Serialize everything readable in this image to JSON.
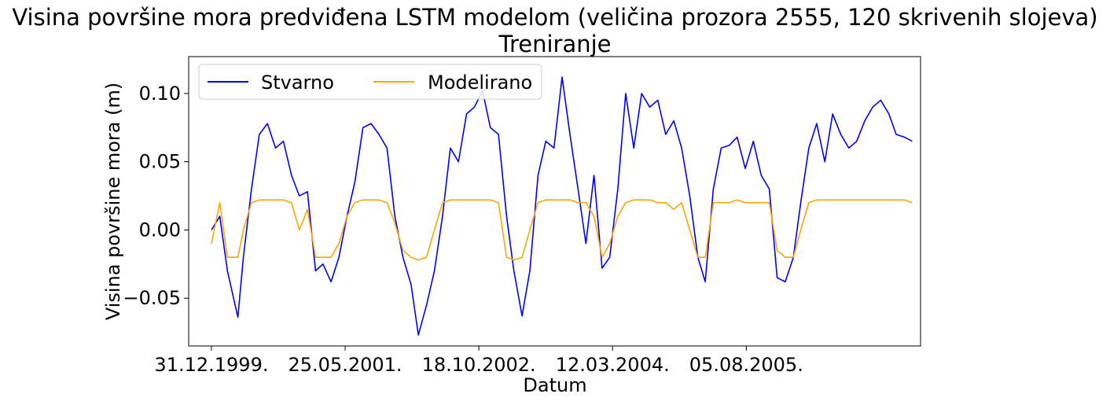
{
  "chart_data": {
    "type": "line",
    "title": "Visina površine mora predviđena LSTM modelom (veličina prozora 2555, 120 skrivenih slojeva)",
    "subtitle": "Treniranje",
    "xlabel": "Datum",
    "ylabel": "Visina površine mora (m)",
    "ylim": [
      -0.085,
      0.127
    ],
    "yticks": [
      -0.05,
      0.0,
      0.05,
      0.1
    ],
    "ytick_labels": [
      "−0.05",
      "0.00",
      "0.05",
      "0.10"
    ],
    "xlim": [
      "1999-10-05",
      "2007-06-02"
    ],
    "xticks": [
      "1999-12-31",
      "2001-05-25",
      "2002-10-18",
      "2004-03-12",
      "2005-08-05"
    ],
    "xtick_labels": [
      "31.12.1999.",
      "25.05.2001.",
      "18.10.2002.",
      "12.03.2004.",
      "05.08.2005."
    ],
    "grid": false,
    "legend_position": "top-left",
    "series": [
      {
        "name": "Stvarno",
        "color": "#0000ff",
        "x": [
          "1999-12-31",
          "2000-02-01",
          "2000-03-01",
          "2000-04-10",
          "2000-05-01",
          "2000-06-01",
          "2000-07-01",
          "2000-08-01",
          "2000-09-01",
          "2000-10-01",
          "2000-11-01",
          "2000-12-01",
          "2001-01-01",
          "2001-02-01",
          "2001-03-01",
          "2001-04-01",
          "2001-05-01",
          "2001-06-01",
          "2001-07-01",
          "2001-08-01",
          "2001-09-01",
          "2001-10-01",
          "2001-11-01",
          "2001-12-01",
          "2002-01-01",
          "2002-02-01",
          "2002-03-01",
          "2002-04-01",
          "2002-05-01",
          "2002-06-01",
          "2002-07-01",
          "2002-08-01",
          "2002-09-01",
          "2002-10-01",
          "2002-11-01",
          "2002-12-01",
          "2003-01-01",
          "2003-02-01",
          "2003-03-01",
          "2003-04-01",
          "2003-05-01",
          "2003-06-01",
          "2003-07-01",
          "2003-08-01",
          "2003-09-01",
          "2003-10-01",
          "2003-11-01",
          "2003-12-01",
          "2004-01-01",
          "2004-02-01",
          "2004-03-01",
          "2004-04-01",
          "2004-05-01",
          "2004-06-01",
          "2004-07-01",
          "2004-08-01",
          "2004-09-01",
          "2004-10-01",
          "2004-11-01",
          "2004-12-01",
          "2005-01-01",
          "2005-02-01",
          "2005-03-01",
          "2005-04-01",
          "2005-05-01",
          "2005-06-01",
          "2005-07-01",
          "2005-08-01",
          "2005-09-01",
          "2005-10-01",
          "2005-11-01",
          "2005-12-01",
          "2006-01-01",
          "2006-02-01",
          "2006-03-01",
          "2006-04-01",
          "2006-05-01",
          "2006-06-01",
          "2006-07-01",
          "2006-08-01",
          "2006-09-01",
          "2006-10-01",
          "2006-11-01",
          "2006-12-01",
          "2007-01-01",
          "2007-02-01",
          "2007-03-01",
          "2007-04-01",
          "2007-05-01"
        ],
        "y": [
          0.0,
          0.01,
          -0.03,
          -0.064,
          -0.02,
          0.03,
          0.07,
          0.078,
          0.06,
          0.065,
          0.04,
          0.025,
          0.028,
          -0.03,
          -0.025,
          -0.038,
          -0.02,
          0.01,
          0.035,
          0.075,
          0.078,
          0.07,
          0.06,
          0.01,
          -0.02,
          -0.04,
          -0.077,
          -0.055,
          -0.03,
          0.01,
          0.06,
          0.05,
          0.085,
          0.09,
          0.102,
          0.075,
          0.07,
          0.01,
          -0.03,
          -0.063,
          -0.03,
          0.04,
          0.065,
          0.06,
          0.112,
          0.07,
          0.03,
          -0.01,
          0.04,
          -0.028,
          -0.02,
          0.03,
          0.1,
          0.06,
          0.1,
          0.09,
          0.095,
          0.07,
          0.08,
          0.06,
          0.025,
          -0.02,
          -0.038,
          0.03,
          0.06,
          0.062,
          0.068,
          0.045,
          0.065,
          0.04,
          0.03,
          -0.035,
          -0.038,
          -0.02,
          0.02,
          0.06,
          0.078,
          0.05,
          0.085,
          0.07,
          0.06,
          0.065,
          0.08,
          0.09,
          0.095,
          0.085,
          0.07,
          0.068,
          0.065
        ]
      },
      {
        "name": "Modelirano",
        "color": "#ffa500",
        "x": [
          "1999-12-31",
          "2000-02-01",
          "2000-03-01",
          "2000-04-10",
          "2000-05-01",
          "2000-06-01",
          "2000-07-01",
          "2000-08-01",
          "2000-09-01",
          "2000-10-01",
          "2000-11-01",
          "2000-12-01",
          "2001-01-01",
          "2001-02-01",
          "2001-03-01",
          "2001-04-01",
          "2001-05-01",
          "2001-06-01",
          "2001-07-01",
          "2001-08-01",
          "2001-09-01",
          "2001-10-01",
          "2001-11-01",
          "2001-12-01",
          "2002-01-01",
          "2002-02-01",
          "2002-03-01",
          "2002-04-01",
          "2002-05-01",
          "2002-06-01",
          "2002-07-01",
          "2002-08-01",
          "2002-09-01",
          "2002-10-01",
          "2002-11-01",
          "2002-12-01",
          "2003-01-01",
          "2003-02-01",
          "2003-03-01",
          "2003-04-01",
          "2003-05-01",
          "2003-06-01",
          "2003-07-01",
          "2003-08-01",
          "2003-09-01",
          "2003-10-01",
          "2003-11-01",
          "2003-12-01",
          "2004-01-01",
          "2004-02-01",
          "2004-03-01",
          "2004-04-01",
          "2004-05-01",
          "2004-06-01",
          "2004-07-01",
          "2004-08-01",
          "2004-09-01",
          "2004-10-01",
          "2004-11-01",
          "2004-12-01",
          "2005-01-01",
          "2005-02-01",
          "2005-03-01",
          "2005-04-01",
          "2005-05-01",
          "2005-06-01",
          "2005-07-01",
          "2005-08-01",
          "2005-09-01",
          "2005-10-01",
          "2005-11-01",
          "2005-12-01",
          "2006-01-01",
          "2006-02-01",
          "2006-03-01",
          "2006-04-01",
          "2006-05-01",
          "2006-06-01",
          "2006-07-01",
          "2006-08-01",
          "2006-09-01",
          "2006-10-01",
          "2006-11-01",
          "2006-12-01",
          "2007-01-01",
          "2007-02-01",
          "2007-03-01",
          "2007-04-01",
          "2007-05-01"
        ],
        "y": [
          -0.01,
          0.02,
          -0.02,
          -0.02,
          0.0,
          0.02,
          0.022,
          0.022,
          0.022,
          0.022,
          0.02,
          0.0,
          0.015,
          -0.02,
          -0.02,
          -0.02,
          -0.01,
          0.01,
          0.02,
          0.022,
          0.022,
          0.022,
          0.02,
          0.005,
          -0.015,
          -0.02,
          -0.022,
          -0.02,
          0.0,
          0.02,
          0.022,
          0.022,
          0.022,
          0.022,
          0.022,
          0.022,
          0.02,
          -0.02,
          -0.022,
          -0.02,
          0.0,
          0.02,
          0.022,
          0.022,
          0.022,
          0.022,
          0.02,
          0.02,
          0.01,
          -0.02,
          -0.01,
          0.01,
          0.02,
          0.022,
          0.022,
          0.022,
          0.02,
          0.02,
          0.015,
          0.02,
          0.0,
          -0.02,
          -0.02,
          0.02,
          0.02,
          0.02,
          0.022,
          0.02,
          0.02,
          0.02,
          0.02,
          -0.015,
          -0.02,
          -0.02,
          0.0,
          0.02,
          0.022,
          0.022,
          0.022,
          0.022,
          0.022,
          0.022,
          0.022,
          0.022,
          0.022,
          0.022,
          0.022,
          0.022,
          0.02
        ]
      }
    ]
  }
}
